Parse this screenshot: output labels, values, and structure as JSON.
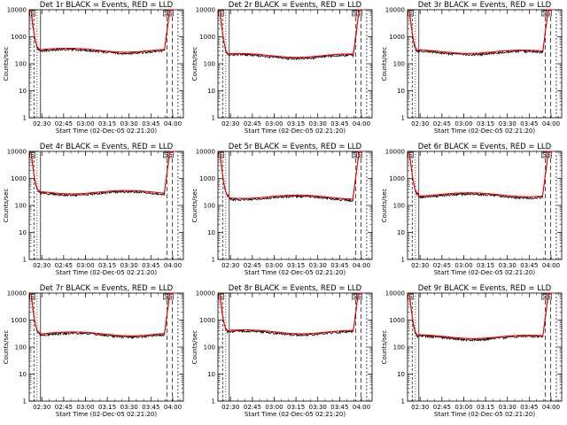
{
  "chart_data": [
    {
      "type": "line",
      "title": "Det 1r BLACK = Events, RED = LLD",
      "variant": 1
    },
    {
      "type": "line",
      "title": "Det 2r BLACK = Events, RED = LLD",
      "variant": 2
    },
    {
      "type": "line",
      "title": "Det 3r BLACK = Events, RED = LLD",
      "variant": 3
    },
    {
      "type": "line",
      "title": "Det 4r BLACK = Events, RED = LLD",
      "variant": 4
    },
    {
      "type": "line",
      "title": "Det 5r BLACK = Events, RED = LLD",
      "variant": 5
    },
    {
      "type": "line",
      "title": "Det 6r BLACK = Events, RED = LLD",
      "variant": 6
    },
    {
      "type": "line",
      "title": "Det 7r BLACK = Events, RED = LLD",
      "variant": 7
    },
    {
      "type": "line",
      "title": "Det 8r BLACK = Events, RED = LLD",
      "variant": 8
    },
    {
      "type": "line",
      "title": "Det 9r BLACK = Events, RED = LLD",
      "variant": 9
    }
  ],
  "shared": {
    "xlabel": "Start Time (02-Dec-05 02:21:20)",
    "ylabel": "Counts/sec",
    "x_ticks": [
      "02:30",
      "02:45",
      "03:00",
      "03:15",
      "03:30",
      "03:45",
      "04:00"
    ],
    "y_ticks": [
      "1",
      "10",
      "100",
      "1000",
      "10000"
    ],
    "ylim": [
      1,
      10000
    ],
    "y_scale": "log",
    "xlim_minutes_after_start": [
      0,
      106
    ],
    "series": [
      {
        "name": "Events",
        "color": "#000000"
      },
      {
        "name": "LLD",
        "color": "#ff0000"
      }
    ],
    "top_markers": [
      "S",
      "S",
      "S"
    ]
  }
}
